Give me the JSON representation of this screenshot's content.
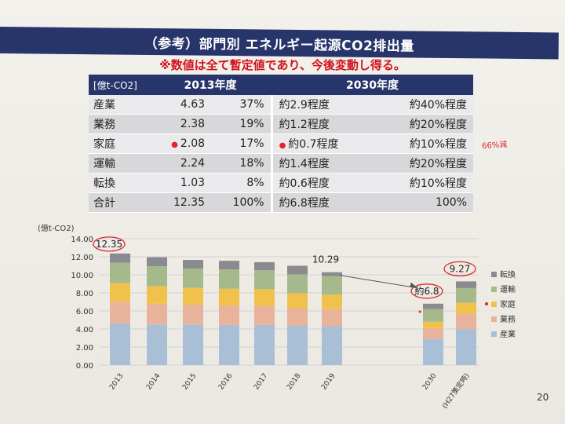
{
  "title": "（参考）部門別 エネルギー起源CO2排出量",
  "note": "※数値は全て暫定値であり、今後変動し得る。",
  "table": {
    "unit": "[億t-CO2]",
    "col_2013": "2013年度",
    "col_2030": "2030年度",
    "rows": [
      {
        "label": "産業",
        "v2013": "4.63",
        "p2013": "37%",
        "v2030": "約2.9程度",
        "p2030": "約40%程度"
      },
      {
        "label": "業務",
        "v2013": "2.38",
        "p2013": "19%",
        "v2030": "約1.2程度",
        "p2030": "約20%程度"
      },
      {
        "label": "家庭",
        "v2013": "2.08",
        "p2013": "17%",
        "v2030": "約0.7程度",
        "p2030": "約10%程度"
      },
      {
        "label": "運輸",
        "v2013": "2.24",
        "p2013": "18%",
        "v2030": "約1.4程度",
        "p2030": "約20%程度"
      },
      {
        "label": "転換",
        "v2013": "1.03",
        "p2013": "8%",
        "v2030": "約0.6程度",
        "p2030": "約10%程度"
      },
      {
        "label": "合計",
        "v2013": "12.35",
        "p2013": "100%",
        "v2030": "約6.8程度",
        "p2030": "100%"
      }
    ],
    "handwritten_note": "66%減"
  },
  "chart_data": {
    "type": "bar",
    "stacked": true,
    "ylabel": "(億t-CO2)",
    "ylim": [
      0,
      14
    ],
    "yticks": [
      "0.00",
      "2.00",
      "4.00",
      "6.00",
      "8.00",
      "10.00",
      "12.00",
      "14.00"
    ],
    "categories": [
      "2013",
      "2014",
      "2015",
      "2016",
      "2017",
      "2018",
      "2019",
      "2030",
      "(H27策定時)"
    ],
    "series": [
      {
        "name": "産業",
        "color": "#a9bfd6",
        "values": [
          4.63,
          4.5,
          4.5,
          4.45,
          4.45,
          4.35,
          4.3,
          2.9,
          4.0
        ]
      },
      {
        "name": "業務",
        "color": "#e9b39b",
        "values": [
          2.38,
          2.3,
          2.2,
          2.15,
          2.1,
          1.95,
          1.9,
          1.2,
          1.68
        ]
      },
      {
        "name": "家庭",
        "color": "#f0c24c",
        "values": [
          2.08,
          1.95,
          1.85,
          1.85,
          1.85,
          1.65,
          1.6,
          0.7,
          1.22
        ]
      },
      {
        "name": "運輸",
        "color": "#a6b98c",
        "values": [
          2.24,
          2.2,
          2.15,
          2.15,
          2.1,
          2.1,
          2.05,
          1.4,
          1.63
        ]
      },
      {
        "name": "転換",
        "color": "#8a8a8f",
        "values": [
          1.03,
          1.0,
          0.95,
          0.95,
          0.9,
          0.95,
          0.44,
          0.6,
          0.74
        ]
      }
    ],
    "data_labels": [
      {
        "category": "2013",
        "text": "12.35"
      },
      {
        "category": "2019",
        "text": "10.29"
      },
      {
        "category": "2030",
        "text": "約6.8"
      },
      {
        "category": "(H27策定時)",
        "text": "9.27"
      }
    ],
    "legend_position": "right"
  },
  "page_number": "20"
}
